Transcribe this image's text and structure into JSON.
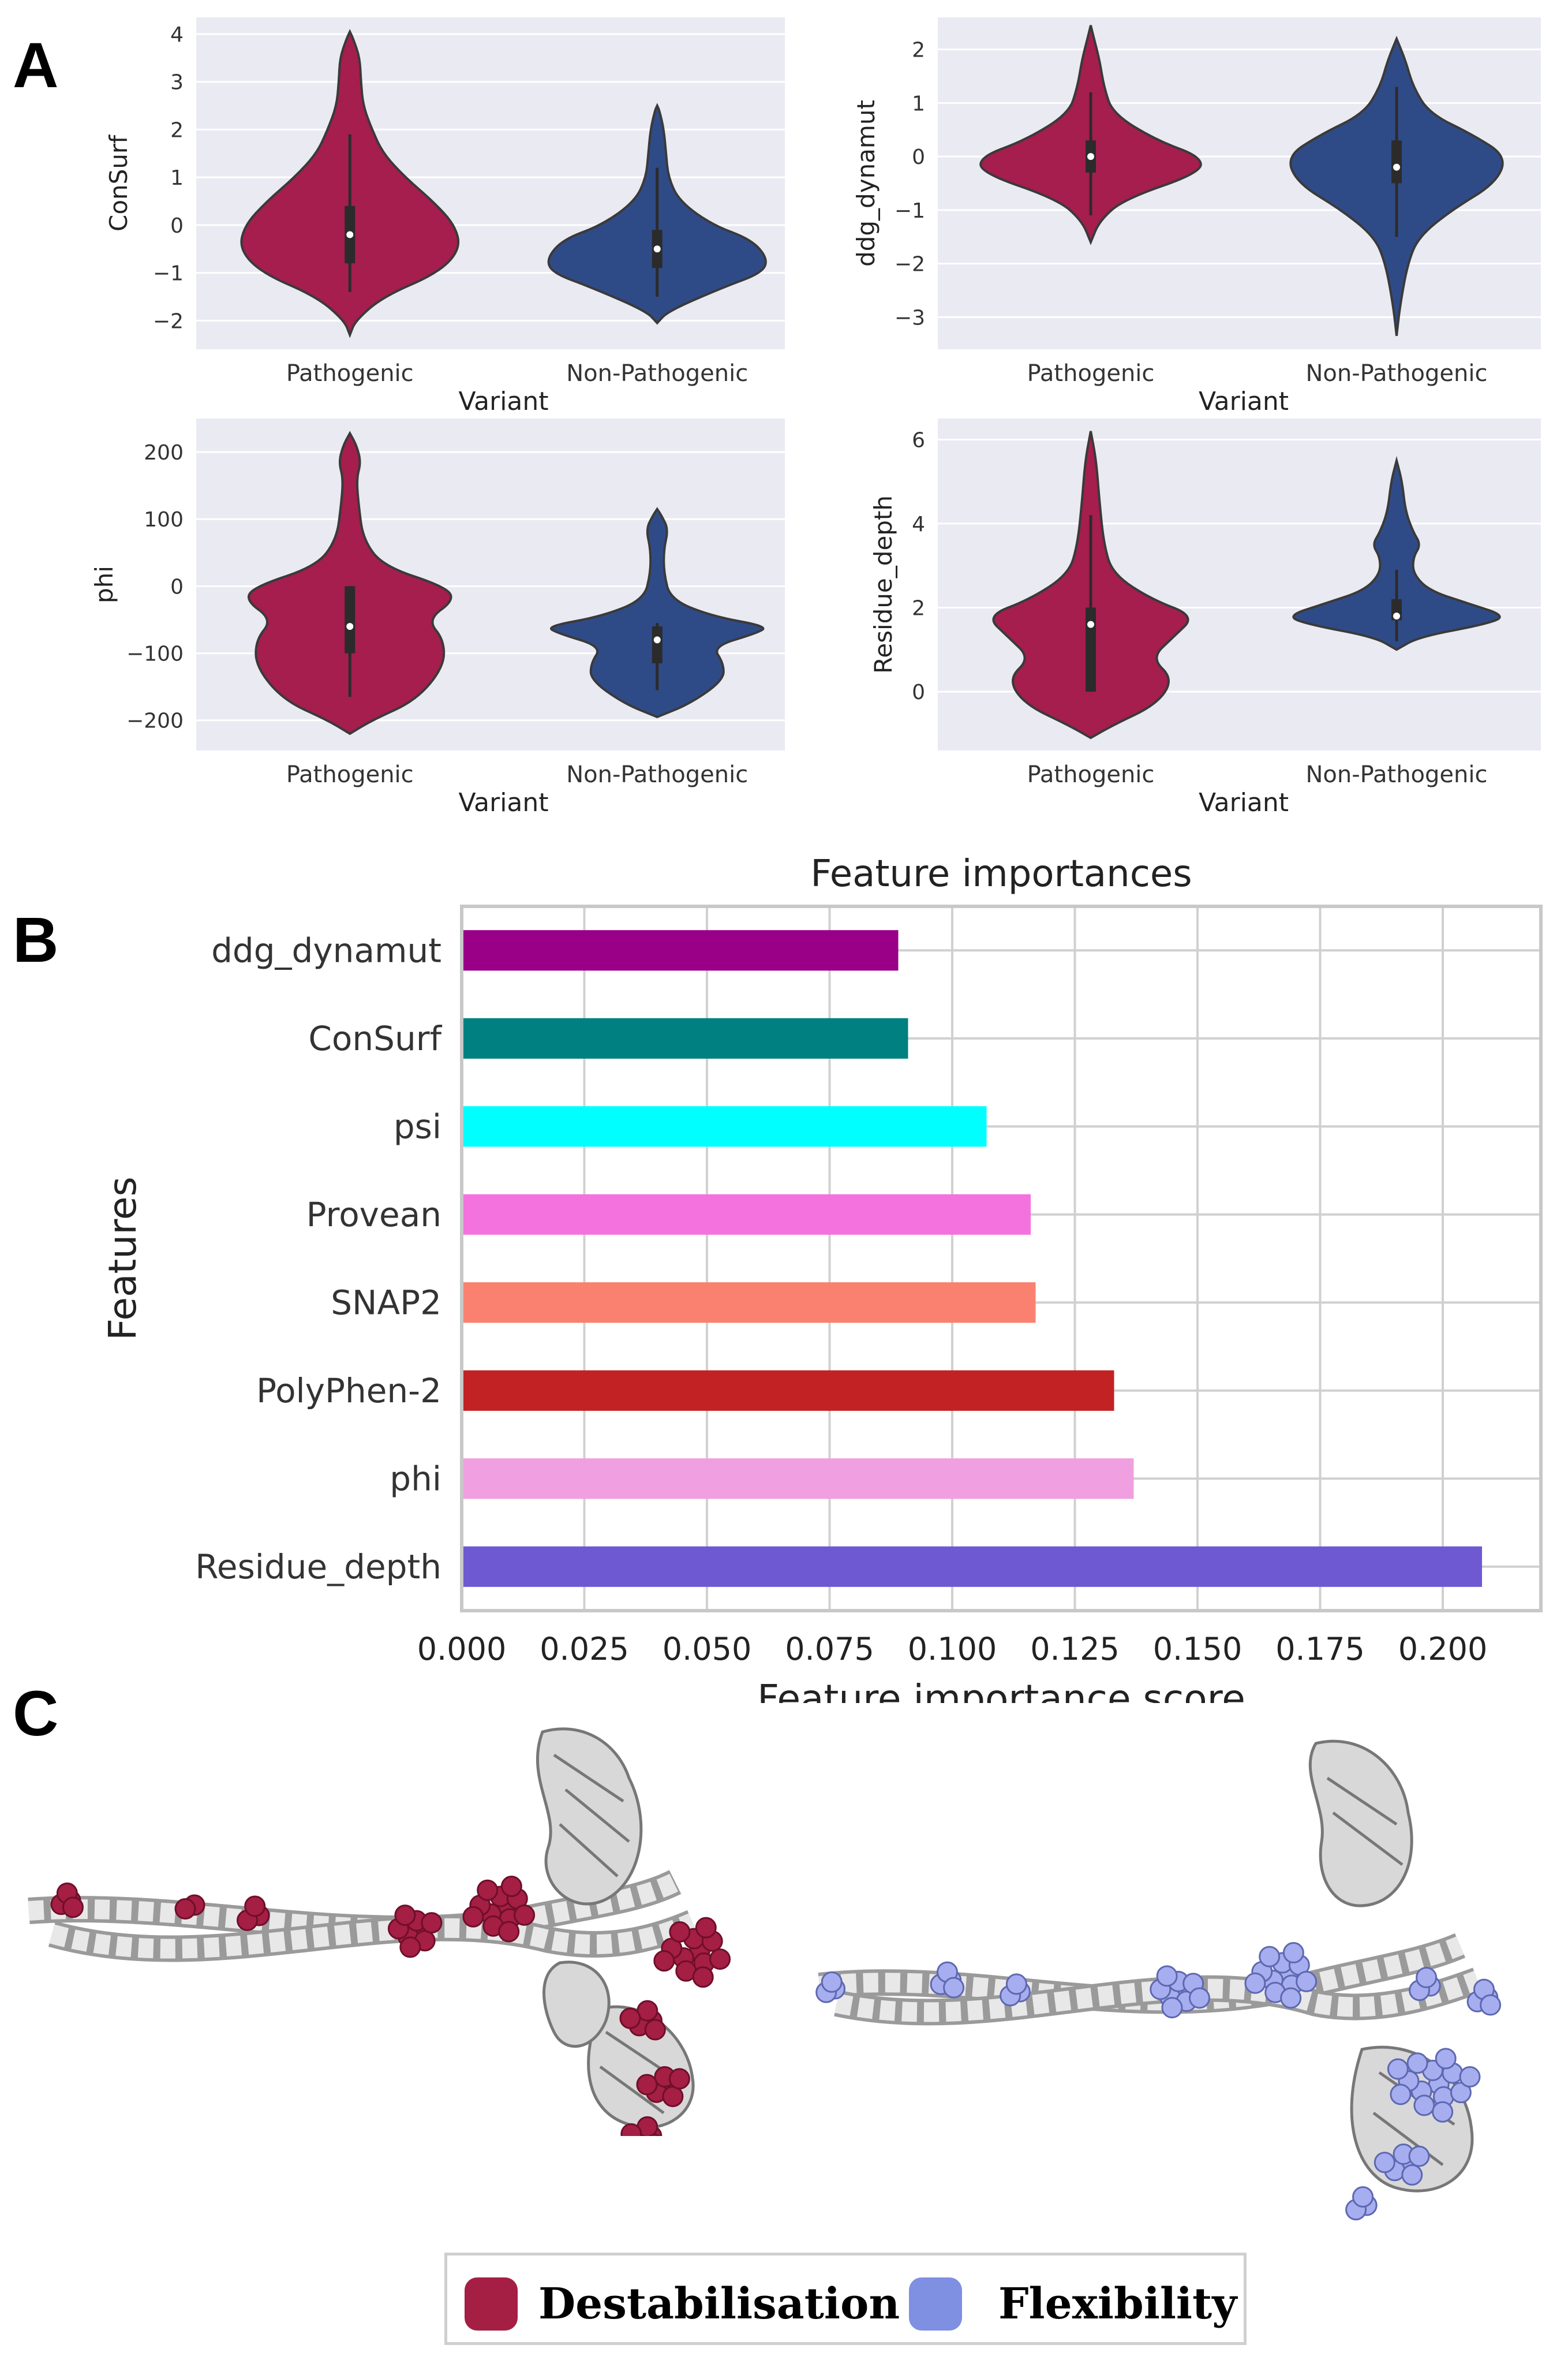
{
  "panels": {
    "a": "A",
    "b": "B",
    "c": "C"
  },
  "violins": [
    {
      "id": "consurf",
      "ylabel": "ConSurf",
      "xlabel": "Variant",
      "categories": [
        "Pathogenic",
        "Non-Pathogenic"
      ],
      "yticks": [
        -2,
        -1,
        0,
        1,
        2,
        3,
        4
      ],
      "ylim": [
        -2.6,
        4.35
      ],
      "groups": [
        {
          "name": "Pathogenic",
          "color": "#a51e4d",
          "median": -0.2,
          "q1": -0.8,
          "q3": 0.4,
          "wlo": -1.4,
          "whi": 1.9,
          "profile": [
            [
              -2.3,
              0
            ],
            [
              -2.0,
              0.05
            ],
            [
              -1.5,
              0.3
            ],
            [
              -1.0,
              0.8
            ],
            [
              -0.5,
              1.0
            ],
            [
              0.0,
              0.95
            ],
            [
              0.5,
              0.75
            ],
            [
              1.0,
              0.5
            ],
            [
              1.5,
              0.3
            ],
            [
              2.0,
              0.2
            ],
            [
              2.5,
              0.12
            ],
            [
              3.0,
              0.1
            ],
            [
              3.5,
              0.09
            ],
            [
              3.9,
              0.03
            ],
            [
              4.05,
              0
            ]
          ]
        },
        {
          "name": "Non-Pathogenic",
          "color": "#2f4b87",
          "median": -0.5,
          "q1": -0.9,
          "q3": -0.1,
          "wlo": -1.5,
          "whi": 1.2,
          "profile": [
            [
              -2.05,
              0
            ],
            [
              -1.8,
              0.1
            ],
            [
              -1.3,
              0.6
            ],
            [
              -1.0,
              0.95
            ],
            [
              -0.7,
              1.0
            ],
            [
              -0.3,
              0.85
            ],
            [
              0.0,
              0.5
            ],
            [
              0.5,
              0.2
            ],
            [
              1.0,
              0.1
            ],
            [
              1.5,
              0.08
            ],
            [
              2.0,
              0.06
            ],
            [
              2.4,
              0.02
            ],
            [
              2.5,
              0
            ]
          ]
        }
      ]
    },
    {
      "id": "ddg",
      "ylabel": "ddg_dynamut",
      "xlabel": "Variant",
      "categories": [
        "Pathogenic",
        "Non-Pathogenic"
      ],
      "yticks": [
        -3,
        -2,
        -1,
        0,
        1,
        2
      ],
      "ylim": [
        -3.6,
        2.6
      ],
      "groups": [
        {
          "name": "Pathogenic",
          "color": "#a51e4d",
          "median": 0.0,
          "q1": -0.3,
          "q3": 0.3,
          "wlo": -1.1,
          "whi": 1.2,
          "profile": [
            [
              -1.6,
              0
            ],
            [
              -1.2,
              0.08
            ],
            [
              -0.8,
              0.3
            ],
            [
              -0.3,
              1.0
            ],
            [
              0.0,
              1.0
            ],
            [
              0.3,
              0.6
            ],
            [
              0.8,
              0.2
            ],
            [
              1.3,
              0.12
            ],
            [
              1.8,
              0.08
            ],
            [
              2.2,
              0.03
            ],
            [
              2.45,
              0
            ]
          ]
        },
        {
          "name": "Non-Pathogenic",
          "color": "#2f4b87",
          "median": -0.2,
          "q1": -0.5,
          "q3": 0.3,
          "wlo": -1.5,
          "whi": 1.3,
          "profile": [
            [
              -3.35,
              0
            ],
            [
              -2.8,
              0.03
            ],
            [
              -2.0,
              0.1
            ],
            [
              -1.5,
              0.2
            ],
            [
              -1.0,
              0.5
            ],
            [
              -0.5,
              0.9
            ],
            [
              0.0,
              1.0
            ],
            [
              0.4,
              0.7
            ],
            [
              0.8,
              0.3
            ],
            [
              1.3,
              0.15
            ],
            [
              1.8,
              0.08
            ],
            [
              2.2,
              0
            ]
          ]
        }
      ]
    },
    {
      "id": "phi",
      "ylabel": "phi",
      "xlabel": "Variant",
      "categories": [
        "Pathogenic",
        "Non-Pathogenic"
      ],
      "yticks": [
        -200,
        -100,
        0,
        100,
        200
      ],
      "ylim": [
        -245,
        250
      ],
      "groups": [
        {
          "name": "Pathogenic",
          "color": "#a51e4d",
          "median": -60,
          "q1": -100,
          "q3": 0,
          "wlo": -165,
          "whi": 0,
          "profile": [
            [
              -220,
              0
            ],
            [
              -200,
              0.2
            ],
            [
              -170,
              0.6
            ],
            [
              -120,
              0.85
            ],
            [
              -80,
              0.85
            ],
            [
              -50,
              0.7
            ],
            [
              -20,
              0.95
            ],
            [
              0,
              0.85
            ],
            [
              30,
              0.3
            ],
            [
              70,
              0.12
            ],
            [
              120,
              0.08
            ],
            [
              160,
              0.06
            ],
            [
              185,
              0.1
            ],
            [
              210,
              0.06
            ],
            [
              228,
              0
            ]
          ]
        },
        {
          "name": "Non-Pathogenic",
          "color": "#2f4b87",
          "median": -80,
          "q1": -115,
          "q3": -60,
          "wlo": -155,
          "whi": -55,
          "profile": [
            [
              -195,
              0
            ],
            [
              -175,
              0.3
            ],
            [
              -140,
              0.6
            ],
            [
              -115,
              0.6
            ],
            [
              -90,
              0.5
            ],
            [
              -70,
              0.9
            ],
            [
              -60,
              1.0
            ],
            [
              -45,
              0.5
            ],
            [
              -20,
              0.12
            ],
            [
              20,
              0.06
            ],
            [
              55,
              0.06
            ],
            [
              85,
              0.1
            ],
            [
              105,
              0.04
            ],
            [
              115,
              0
            ]
          ]
        }
      ]
    },
    {
      "id": "depth",
      "ylabel": "Residue_depth",
      "xlabel": "Variant",
      "categories": [
        "Pathogenic",
        "Non-Pathogenic"
      ],
      "yticks": [
        0,
        2,
        4,
        6
      ],
      "ylim": [
        -1.4,
        6.5
      ],
      "groups": [
        {
          "name": "Pathogenic",
          "color": "#a51e4d",
          "median": 1.6,
          "q1": 0.0,
          "q3": 2.0,
          "wlo": 0.0,
          "whi": 4.2,
          "profile": [
            [
              -1.1,
              0
            ],
            [
              -0.8,
              0.2
            ],
            [
              -0.3,
              0.6
            ],
            [
              0.3,
              0.75
            ],
            [
              0.8,
              0.55
            ],
            [
              1.3,
              0.75
            ],
            [
              1.8,
              0.95
            ],
            [
              2.2,
              0.55
            ],
            [
              2.8,
              0.2
            ],
            [
              3.5,
              0.12
            ],
            [
              4.5,
              0.08
            ],
            [
              5.5,
              0.05
            ],
            [
              6.2,
              0
            ]
          ]
        },
        {
          "name": "Non-Pathogenic",
          "color": "#2f4b87",
          "median": 1.8,
          "q1": 1.7,
          "q3": 2.2,
          "wlo": 1.2,
          "whi": 2.9,
          "profile": [
            [
              1.0,
              0
            ],
            [
              1.3,
              0.2
            ],
            [
              1.6,
              0.8
            ],
            [
              1.8,
              1.0
            ],
            [
              2.1,
              0.65
            ],
            [
              2.4,
              0.3
            ],
            [
              2.8,
              0.15
            ],
            [
              3.2,
              0.15
            ],
            [
              3.5,
              0.22
            ],
            [
              3.8,
              0.15
            ],
            [
              4.3,
              0.08
            ],
            [
              5.0,
              0.05
            ],
            [
              5.5,
              0
            ]
          ]
        }
      ]
    }
  ],
  "chart_data": [
    {
      "type": "bar",
      "orientation": "horizontal",
      "title": "Feature importances",
      "xlabel": "Feature importance score",
      "ylabel": "Features",
      "xlim": [
        0.0,
        0.22
      ],
      "xticks": [
        "0.000",
        "0.025",
        "0.050",
        "0.075",
        "0.100",
        "0.125",
        "0.150",
        "0.175",
        "0.200"
      ],
      "categories": [
        "ddg_dynamut",
        "ConSurf",
        "psi",
        "Provean",
        "SNAP2",
        "PolyPhen-2",
        "phi",
        "Residue_depth"
      ],
      "values": [
        0.089,
        0.091,
        0.107,
        0.116,
        0.117,
        0.133,
        0.137,
        0.208
      ],
      "colors": [
        "#990087",
        "#008080",
        "#00ffff",
        "#f472dd",
        "#fa8170",
        "#c22223",
        "#f0a0e0",
        "#6e59d2"
      ],
      "grid": true
    }
  ],
  "legend": [
    {
      "label": "Destabilisation",
      "color": "#a51e44"
    },
    {
      "label": "Flexibility",
      "color": "#7f8fe2"
    }
  ]
}
